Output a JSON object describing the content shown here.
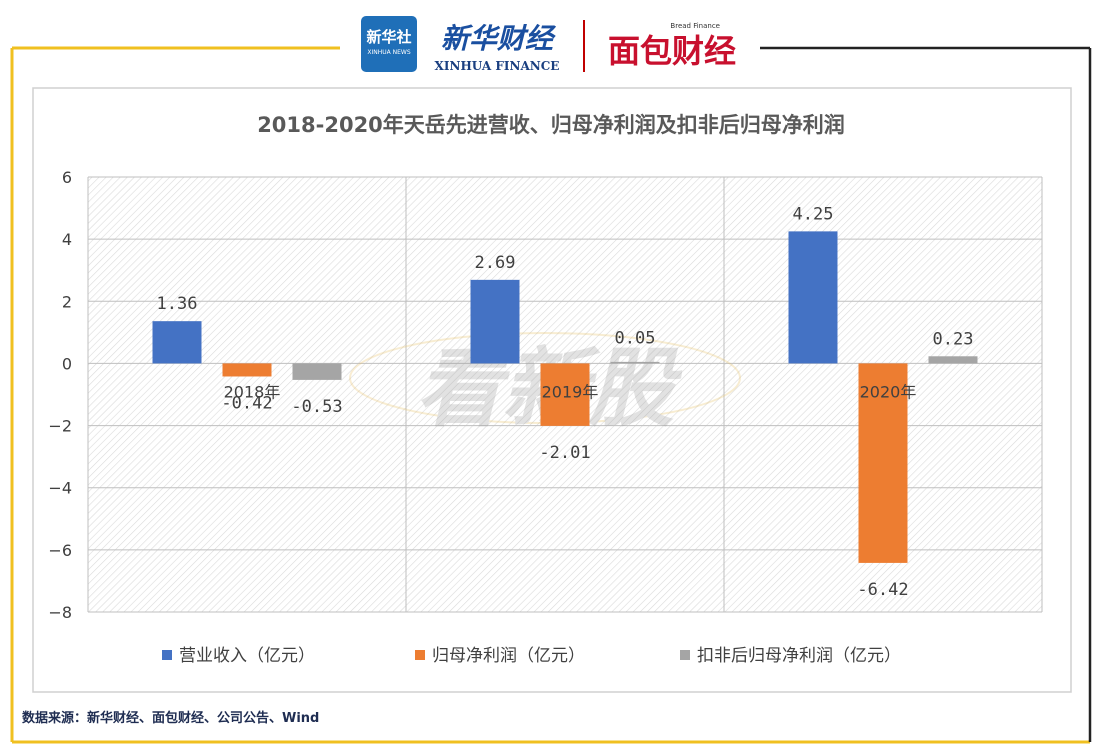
{
  "brand": {
    "xinhua_badge": "新华社",
    "xinhua_badge_sub": "XINHUA NEWS",
    "xinhua_finance_cn": "新华财经",
    "xinhua_finance_en": "XINHUA FINANCE",
    "bread_finance_en": "Bread Finance",
    "bread_finance_cn": "面包财经"
  },
  "watermark": "看新股",
  "source_text": "数据来源：新华财经、面包财经、公司公告、Wind",
  "colors": {
    "frame": "#f0c020",
    "series": [
      "#4472c4",
      "#ed7d31",
      "#a5a5a5"
    ]
  },
  "chart_data": {
    "type": "bar",
    "title": "2018-2020年天岳先进营收、归母净利润及扣非后归母净利润",
    "categories": [
      "2018年",
      "2019年",
      "2020年"
    ],
    "series": [
      {
        "name": "营业收入（亿元）",
        "values": [
          1.36,
          2.69,
          4.25
        ],
        "labels": [
          "1.36",
          "2.69",
          "4.25"
        ]
      },
      {
        "name": "归母净利润（亿元）",
        "values": [
          -0.42,
          -2.01,
          -6.42
        ],
        "labels": [
          "-0.42",
          "-2.01",
          "-6.42"
        ]
      },
      {
        "name": "扣非后归母净利润（亿元）",
        "values": [
          -0.53,
          0.05,
          0.23
        ],
        "labels": [
          "-0.53",
          "0.05",
          "0.23"
        ]
      }
    ],
    "ylim": [
      -8,
      6
    ],
    "yticks": [
      "6",
      "4",
      "2",
      "0",
      "−2",
      "−4",
      "−6",
      "−8"
    ],
    "grid": true,
    "legend": "bottom"
  }
}
